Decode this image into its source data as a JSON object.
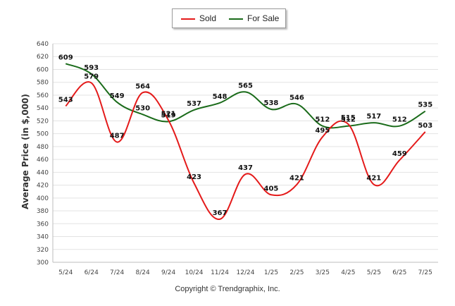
{
  "chart_data": {
    "type": "line",
    "categories": [
      "5/24",
      "6/24",
      "7/24",
      "8/24",
      "9/24",
      "10/24",
      "11/24",
      "12/24",
      "1/25",
      "2/25",
      "3/25",
      "4/25",
      "5/25",
      "6/25",
      "7/25"
    ],
    "series": [
      {
        "name": "Sold",
        "color": "#e41a1a",
        "values": [
          543,
          579,
          487,
          564,
          521,
          423,
          367,
          437,
          405,
          421,
          495,
          515,
          421,
          459,
          503
        ]
      },
      {
        "name": "For Sale",
        "color": "#1a6b1a",
        "values": [
          609,
          593,
          549,
          530,
          519,
          537,
          548,
          565,
          538,
          546,
          512,
          512,
          517,
          512,
          535
        ]
      }
    ],
    "title": "",
    "xlabel": "",
    "ylabel": "Average Price (in $,000)",
    "ylim": [
      300,
      640
    ],
    "ytick_step": 20,
    "grid": true,
    "legend_placement": "top-center"
  },
  "legend": {
    "sold_label": "Sold",
    "forsale_label": "For Sale"
  },
  "footer": {
    "copyright": "Copyright © Trendgraphix, Inc."
  }
}
